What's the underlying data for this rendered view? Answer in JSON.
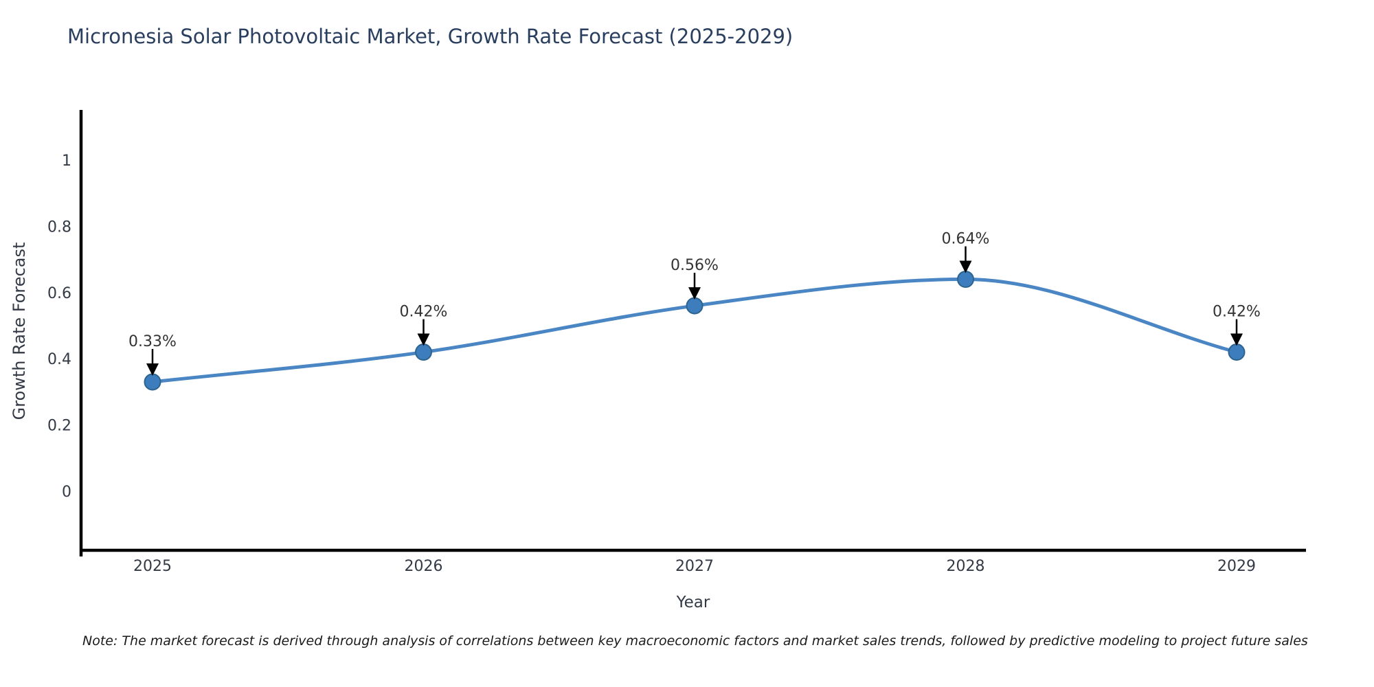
{
  "title": "Micronesia Solar Photovoltaic Market, Growth Rate Forecast (2025-2029)",
  "note": "Note: The market forecast is derived through analysis of correlations between key macroeconomic factors and market sales trends, followed by predictive modeling to project future sales",
  "chart_data": {
    "type": "line",
    "title": "Micronesia Solar Photovoltaic Market, Growth Rate Forecast (2025-2029)",
    "xlabel": "Year",
    "ylabel": "Growth Rate Forecast",
    "categories": [
      "2025",
      "2026",
      "2027",
      "2028",
      "2029"
    ],
    "series": [
      {
        "name": "Growth Rate Forecast",
        "values": [
          0.33,
          0.42,
          0.56,
          0.64,
          0.42
        ],
        "point_labels": [
          "0.33%",
          "0.42%",
          "0.56%",
          "0.64%",
          "0.42%"
        ]
      }
    ],
    "y_ticks": [
      0,
      0.2,
      0.4,
      0.6,
      0.8,
      1
    ],
    "y_tick_labels": [
      "0",
      "0.2",
      "0.4",
      "0.6",
      "0.8",
      "1"
    ],
    "ylim": [
      -0.176,
      1.151
    ],
    "grid": false,
    "legend_position": "none",
    "line_shape": "spline",
    "colors": {
      "line": "#4a86c4",
      "marker_fill": "#3d7dbd",
      "marker_edge": "#2d648f",
      "axis": "#000000",
      "title_text": "#2a3f5f",
      "tick_text": "#333a45",
      "annotation_text": "#333333",
      "annotation_arrow": "#000000"
    }
  }
}
